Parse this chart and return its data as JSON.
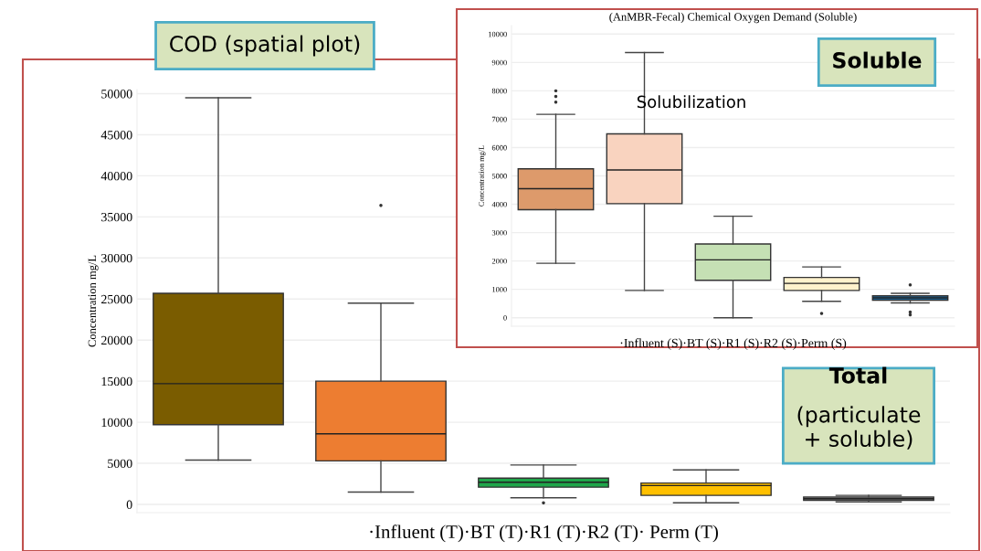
{
  "chart_data": [
    {
      "type": "box",
      "ylabel": "Concentration mg/L",
      "xlabel": "·Influent (T)·BT (T)·R1 (T)·R2 (T)· Perm (T)",
      "categories": [
        null,
        null,
        null,
        null,
        null
      ],
      "colors": [
        "#7a5c00",
        "#ed7d31",
        "#1fa64a",
        "#ffc000",
        "#7f7f7f"
      ],
      "boxes": [
        {
          "low": 5400,
          "q1": 9700,
          "median": 14700,
          "q3": 25700,
          "high": 49500
        },
        {
          "low": 1500,
          "q1": 5300,
          "median": 8600,
          "q3": 15000,
          "high": 24500,
          "outliers": [
            36400
          ]
        },
        {
          "low": 800,
          "q1": 2100,
          "median": 2700,
          "q3": 3200,
          "high": 4800,
          "outliers": [
            200
          ]
        },
        {
          "low": 200,
          "q1": 1100,
          "median": 2300,
          "q3": 2600,
          "high": 4200
        },
        {
          "low": 300,
          "q1": 500,
          "median": 700,
          "q3": 900,
          "high": 1100
        }
      ],
      "ylim": [
        -1000,
        50500
      ],
      "yticks": [
        0,
        5000,
        10000,
        15000,
        20000,
        25000,
        30000,
        35000,
        40000,
        45000,
        50000
      ],
      "grid": "y",
      "annotations": [
        "COD (spatial plot)",
        "Total\n(particulate\n+ soluble)"
      ]
    },
    {
      "type": "box",
      "title": "(AnMBR-Fecal) Chemical Oxygen Demand (Soluble)",
      "ylabel": "Concentration mg/L",
      "xlabel": "·Influent (S)·BT (S)·R1 (S)·R2 (S)·Perm (S)",
      "categories": [
        null,
        null,
        null,
        null,
        null
      ],
      "colors": [
        "#dd9a6b",
        "#f9d3bf",
        "#c5e0b4",
        "#fff2cc",
        "#1f6fa8"
      ],
      "boxes": [
        {
          "low": 1920,
          "q1": 3810,
          "median": 4550,
          "q3": 5250,
          "high": 7170,
          "outliers": [
            7600,
            7800,
            8000
          ]
        },
        {
          "low": 960,
          "q1": 4020,
          "median": 5210,
          "q3": 6480,
          "high": 9350
        },
        {
          "low": 0,
          "q1": 1320,
          "median": 2040,
          "q3": 2600,
          "high": 3580
        },
        {
          "low": 580,
          "q1": 960,
          "median": 1210,
          "q3": 1420,
          "high": 1790,
          "outliers": [
            150
          ]
        },
        {
          "low": 520,
          "q1": 620,
          "median": 700,
          "q3": 770,
          "high": 860,
          "outliers": [
            1160,
            200,
            100
          ]
        }
      ],
      "ylim": [
        -300,
        10300
      ],
      "yticks": [
        0,
        1000,
        2000,
        3000,
        4000,
        5000,
        6000,
        7000,
        8000,
        9000,
        10000
      ],
      "grid": "y",
      "annotations": [
        "Soluble",
        "Solubilization"
      ]
    }
  ]
}
